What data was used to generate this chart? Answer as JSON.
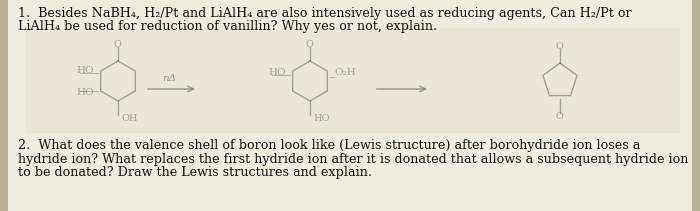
{
  "background_color": "#b8b090",
  "center_bg": "#e8e4dc",
  "text_color": "#111111",
  "struct_color": "#666666",
  "line1": "1.  Besides NaBH₄, H₂/Pt and LiAlH₄ are also intensively used as reducing agents, Can H₂/Pt or",
  "line2": "LiAlH₄ be used for reduction of vanillin? Why yes or not, explain.",
  "q2_line1": "2.  What does the valence shell of boron look like (Lewis structure) after borohydride ion loses a",
  "q2_line2": "hydride ion? What replaces the first hydride ion after it is donated that allows a subsequent hydride ion",
  "q2_line3": "to be donated? Draw the Lewis structures and explain.",
  "figwidth": 7.0,
  "figheight": 2.11,
  "dpi": 100
}
